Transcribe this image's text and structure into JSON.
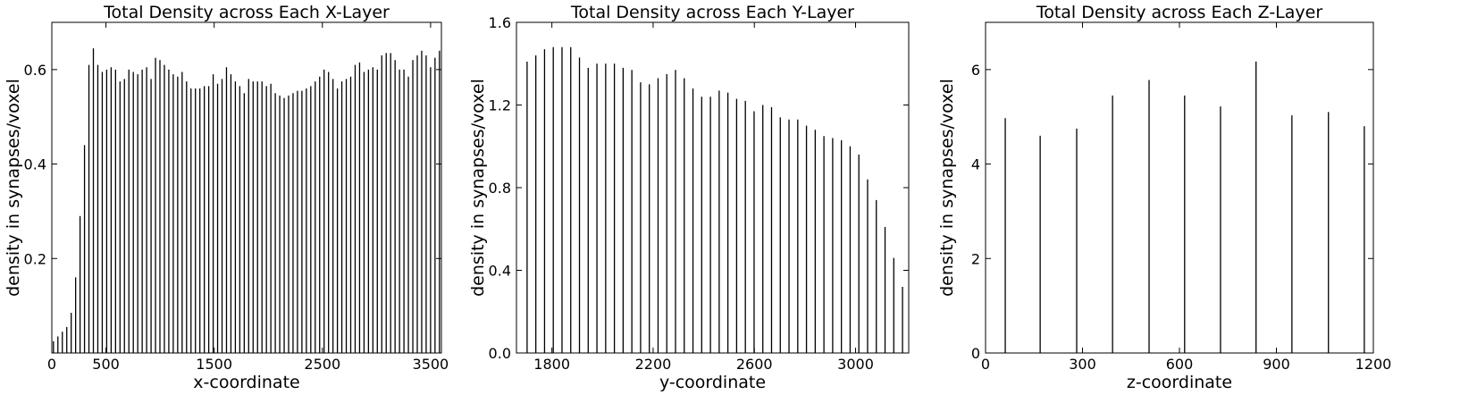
{
  "chart_data": [
    {
      "type": "bar",
      "title": "Total Density across Each X-Layer",
      "x_label": "x-coordinate",
      "y_label": "density in synapses/voxel",
      "color": "#000000",
      "xlim": [
        0,
        3600
      ],
      "xticks": [
        0,
        500,
        1500,
        2500,
        3500
      ],
      "ylim": [
        0,
        0.7
      ],
      "yticks": [
        0.2,
        0.4,
        0.6
      ],
      "x": [
        15,
        56,
        97,
        138,
        179,
        220,
        261,
        302,
        343,
        384,
        425,
        466,
        507,
        548,
        589,
        630,
        671,
        712,
        753,
        794,
        835,
        876,
        917,
        958,
        999,
        1040,
        1081,
        1122,
        1163,
        1204,
        1245,
        1286,
        1327,
        1368,
        1409,
        1450,
        1491,
        1532,
        1573,
        1614,
        1655,
        1696,
        1737,
        1778,
        1819,
        1860,
        1901,
        1942,
        1983,
        2024,
        2065,
        2106,
        2147,
        2188,
        2229,
        2270,
        2311,
        2352,
        2393,
        2434,
        2475,
        2516,
        2557,
        2598,
        2639,
        2680,
        2721,
        2762,
        2803,
        2844,
        2885,
        2926,
        2967,
        3008,
        3049,
        3090,
        3131,
        3172,
        3213,
        3254,
        3295,
        3336,
        3377,
        3418,
        3459,
        3500,
        3541,
        3582
      ],
      "values": [
        0.025,
        0.035,
        0.045,
        0.055,
        0.085,
        0.16,
        0.29,
        0.44,
        0.61,
        0.645,
        0.61,
        0.595,
        0.6,
        0.605,
        0.6,
        0.575,
        0.58,
        0.6,
        0.595,
        0.59,
        0.6,
        0.605,
        0.58,
        0.625,
        0.62,
        0.61,
        0.6,
        0.59,
        0.585,
        0.595,
        0.575,
        0.56,
        0.56,
        0.56,
        0.565,
        0.565,
        0.59,
        0.57,
        0.58,
        0.605,
        0.59,
        0.575,
        0.565,
        0.55,
        0.58,
        0.575,
        0.575,
        0.575,
        0.565,
        0.57,
        0.55,
        0.545,
        0.54,
        0.545,
        0.55,
        0.555,
        0.555,
        0.56,
        0.565,
        0.575,
        0.585,
        0.6,
        0.595,
        0.58,
        0.56,
        0.575,
        0.58,
        0.585,
        0.61,
        0.615,
        0.595,
        0.6,
        0.605,
        0.6,
        0.63,
        0.635,
        0.635,
        0.62,
        0.6,
        0.6,
        0.585,
        0.62,
        0.63,
        0.64,
        0.63,
        0.605,
        0.625,
        0.64
      ]
    },
    {
      "type": "bar",
      "title": "Total Density across Each Y-Layer",
      "x_label": "y-coordinate",
      "y_label": "density in synapses/voxel",
      "color": "#000000",
      "xlim": [
        1660,
        3210
      ],
      "xticks": [
        1800,
        2200,
        2600,
        3000
      ],
      "ylim": [
        0,
        1.6
      ],
      "yticks": [
        {
          "value": 0,
          "label": "0.0"
        },
        0.4,
        0.8,
        1.2,
        1.6
      ],
      "x": [
        1702,
        1736.5,
        1771,
        1805.5,
        1840,
        1874.5,
        1909,
        1943.5,
        1978,
        2012.5,
        2047,
        2081.5,
        2116,
        2150.5,
        2185,
        2219.5,
        2254,
        2288.5,
        2323,
        2357.5,
        2392,
        2426.5,
        2461,
        2495.5,
        2530,
        2564.5,
        2599,
        2633.5,
        2668,
        2702.5,
        2737,
        2771.5,
        2806,
        2840.5,
        2875,
        2909.5,
        2944,
        2978.5,
        3013,
        3047.5,
        3082,
        3116.5,
        3151,
        3185.5
      ],
      "values": [
        1.41,
        1.44,
        1.47,
        1.48,
        1.48,
        1.48,
        1.43,
        1.38,
        1.4,
        1.4,
        1.4,
        1.38,
        1.37,
        1.31,
        1.3,
        1.33,
        1.35,
        1.37,
        1.33,
        1.28,
        1.24,
        1.24,
        1.27,
        1.26,
        1.23,
        1.22,
        1.17,
        1.2,
        1.19,
        1.14,
        1.13,
        1.13,
        1.1,
        1.08,
        1.05,
        1.04,
        1.03,
        1.0,
        0.96,
        0.84,
        0.74,
        0.61,
        0.46,
        0.32
      ]
    },
    {
      "type": "bar",
      "title": "Total Density across Each Z-Layer",
      "x_label": "z-coordinate",
      "y_label": "density in synapses/voxel",
      "color": "#000000",
      "xlim": [
        0,
        1200
      ],
      "xticks": [
        0,
        300,
        600,
        900,
        1200
      ],
      "ylim": [
        0,
        7
      ],
      "yticks": [
        0,
        2,
        4,
        6
      ],
      "x": [
        61,
        169,
        282,
        393,
        506,
        616,
        727,
        837,
        948,
        1061,
        1172
      ],
      "values": [
        4.97,
        4.6,
        4.75,
        5.45,
        5.78,
        5.45,
        5.22,
        6.17,
        5.03,
        5.1,
        4.8
      ]
    }
  ]
}
